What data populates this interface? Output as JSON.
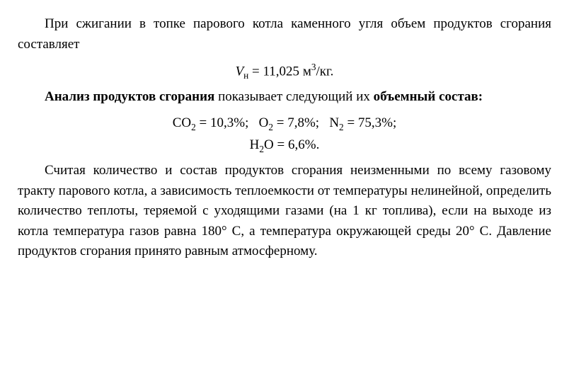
{
  "intro_sentence": "При сжигании в топке парового котла каменного угля объем продуктов сгорания составляет",
  "volume_formula": {
    "variable": "V",
    "subscript": "н",
    "value": "11,025",
    "unit_base": "м",
    "unit_sup": "3",
    "unit_suffix": "/кг."
  },
  "analysis_sentence_bold": "Анализ продуктов сгорания",
  "analysis_sentence_rest": " показывает следующий их ",
  "analysis_sentence_bold2": "объемный состав:",
  "composition": {
    "line1": {
      "co2_label": "CO",
      "co2_sub": "2",
      "co2_value": "10,3%",
      "o2_label": "O",
      "o2_sub": "2",
      "o2_value": "7,8%",
      "n2_label": "N",
      "n2_sub": "2",
      "n2_value": "75,3%"
    },
    "line2": {
      "h2o_label_h": "H",
      "h2o_sub1": "2",
      "h2o_label_o": "O",
      "h2o_value": "6,6%"
    }
  },
  "problem_text": "Считая количество и состав продуктов сгорания неизменными по всему газовому тракту парового котла, а зависимость теплоемкости от температуры нелинейной, определить количество теплоты, теряемой с уходящими газами (на 1 кг топлива), если на выходе из котла температура газов равна 180° С, а температура окружающей среды 20° С. Давление продуктов сгорания принято равным атмосферному.",
  "styling": {
    "font_size": 19,
    "line_height": 1.5,
    "text_color": "#000000",
    "background_color": "#ffffff",
    "text_indent_em": 2,
    "font_family": "Times New Roman"
  }
}
